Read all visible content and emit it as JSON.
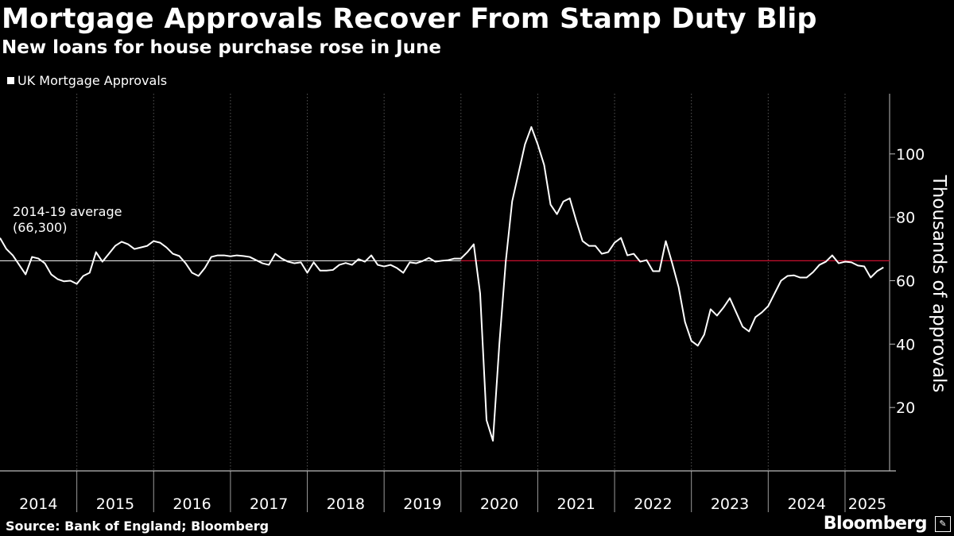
{
  "header": {
    "title": "Mortgage Approvals Recover From Stamp Duty Blip",
    "subtitle": "New loans for house purchase rose in June"
  },
  "legend": {
    "label": "UK Mortgage Approvals"
  },
  "footer": {
    "source": "Source: Bank of England; Bloomberg",
    "brand": "Bloomberg"
  },
  "colors": {
    "background": "#000000",
    "line": "#ffffff",
    "average_line": "#c8102e",
    "grid": "#555555"
  },
  "chart_data": {
    "type": "line",
    "title": "Mortgage Approvals Recover From Stamp Duty Blip",
    "subtitle": "New loans for house purchase rose in June",
    "xlabel": "",
    "ylabel": "Thousands of approvals",
    "ylim": [
      0,
      119
    ],
    "yticks": [
      20,
      40,
      60,
      80,
      100
    ],
    "y_axis_side": "right",
    "x_start": 2014.0,
    "x_end": 2025.58,
    "year_labels": [
      "2014",
      "2015",
      "2016",
      "2017",
      "2018",
      "2019",
      "2020",
      "2021",
      "2022",
      "2023",
      "2024",
      "2025"
    ],
    "year_starts": [
      2014,
      2015,
      2016,
      2017,
      2018,
      2019,
      2020,
      2021,
      2022,
      2023,
      2024,
      2025
    ],
    "grid": "vertical dotted at year starts",
    "annotation": {
      "line1": "2014-19 average",
      "line2": "(66,300)",
      "value": 66.3
    },
    "series": [
      {
        "name": "UK Mortgage Approvals",
        "frequency": "monthly",
        "start": "2014-01",
        "values": [
          73.5,
          70.0,
          68.0,
          65.0,
          62.0,
          67.5,
          67.0,
          65.5,
          62.0,
          60.5,
          59.8,
          60.0,
          59.0,
          61.5,
          62.5,
          69.0,
          66.0,
          68.5,
          71.0,
          72.3,
          71.5,
          70.0,
          70.5,
          71.0,
          72.5,
          72.0,
          70.5,
          68.5,
          67.8,
          65.5,
          62.5,
          61.5,
          64.0,
          67.5,
          68.0,
          68.0,
          67.7,
          68.0,
          67.8,
          67.5,
          66.5,
          65.5,
          65.0,
          68.5,
          67.0,
          66.0,
          65.5,
          65.8,
          62.5,
          65.8,
          63.2,
          63.2,
          63.4,
          65.0,
          65.6,
          65.0,
          66.8,
          66.0,
          68.0,
          65.0,
          64.5,
          65.0,
          64.0,
          62.5,
          65.8,
          65.5,
          66.2,
          67.2,
          66.0,
          66.3,
          66.5,
          67.0,
          67.0,
          69.0,
          71.5,
          56.0,
          16.0,
          9.5,
          40.0,
          66.0,
          85.0,
          94.0,
          103.0,
          108.5,
          103.0,
          96.5,
          84.0,
          81.0,
          85.0,
          86.0,
          79.0,
          72.5,
          71.0,
          71.0,
          68.5,
          69.0,
          72.0,
          73.5,
          68.0,
          68.5,
          66.0,
          66.5,
          63.0,
          63.0,
          72.5,
          65.5,
          58.0,
          47.0,
          41.0,
          39.5,
          43.0,
          51.0,
          49.0,
          51.5,
          54.5,
          50.0,
          45.5,
          44.0,
          48.5,
          50.0,
          52.0,
          56.0,
          60.0,
          61.5,
          61.7,
          61.0,
          61.0,
          62.7,
          65.0,
          66.0,
          68.0,
          65.5,
          66.0,
          65.8,
          64.8,
          64.5,
          61.0,
          63.0,
          64.2
        ]
      }
    ]
  }
}
